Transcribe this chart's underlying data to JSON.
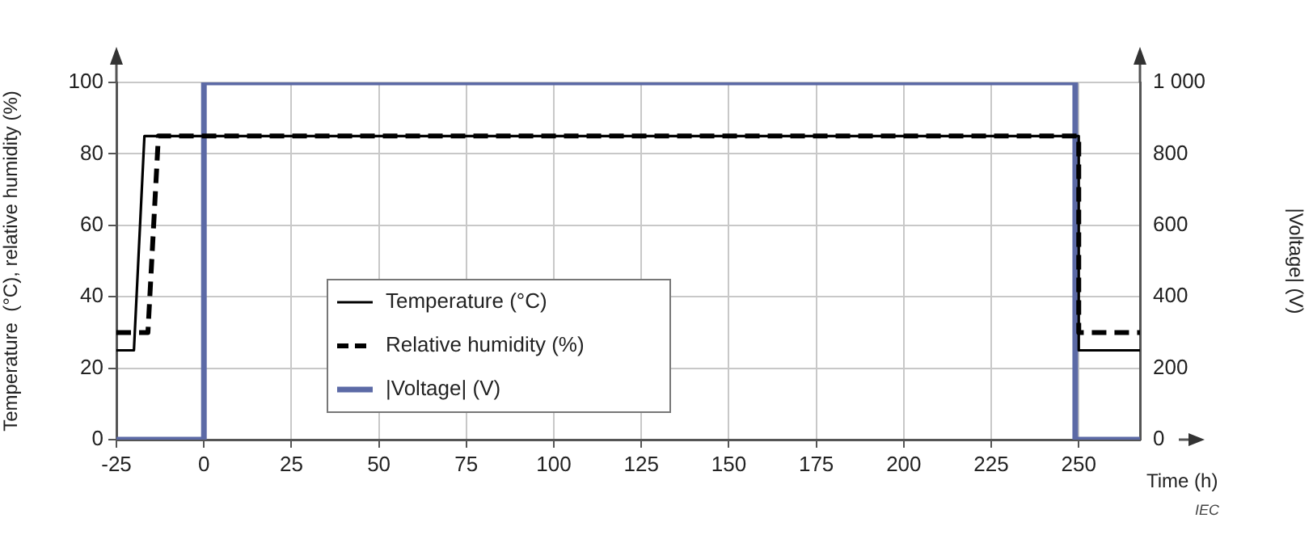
{
  "chart_data": {
    "type": "line",
    "xlabel": "Time (h)",
    "ylabel": "Temperature  (°C), relative humidity (%)",
    "y2label": "|Voltage| (V)",
    "xlim": [
      -25,
      267.5
    ],
    "xticks": [
      -25,
      0,
      25,
      50,
      75,
      100,
      125,
      150,
      175,
      200,
      225,
      250
    ],
    "ylim": [
      0,
      100
    ],
    "yticks": [
      0,
      20,
      40,
      60,
      80,
      100
    ],
    "y2lim": [
      0,
      1000
    ],
    "y2ticks": [
      0,
      200,
      400,
      600,
      800,
      {
        "value": 1000,
        "label": "1 000"
      }
    ],
    "grid": true,
    "legend": "bottom",
    "marker": "none",
    "annotations": [
      "IEC"
    ],
    "series": [
      {
        "name": "Temperature (°C)",
        "color": "#000000",
        "line_style": "solid",
        "x": [
          -25,
          -20,
          -17,
          250,
          250,
          267.5
        ],
        "values": [
          25,
          25,
          85,
          85,
          25,
          25
        ]
      },
      {
        "name": "Relative humidity (%)",
        "color": "#000000",
        "line_style": "dashed",
        "x": [
          -25,
          -16,
          -13,
          250,
          250,
          267.5
        ],
        "values": [
          30,
          30,
          85,
          85,
          30,
          30
        ]
      },
      {
        "name": "|Voltage| (V)",
        "color": "#5c6aa6",
        "line_style": "solid",
        "axis": "y2",
        "x": [
          -25,
          0,
          0,
          249,
          249,
          267.5
        ],
        "values": [
          0,
          0,
          1000,
          1000,
          0,
          0
        ]
      }
    ]
  }
}
